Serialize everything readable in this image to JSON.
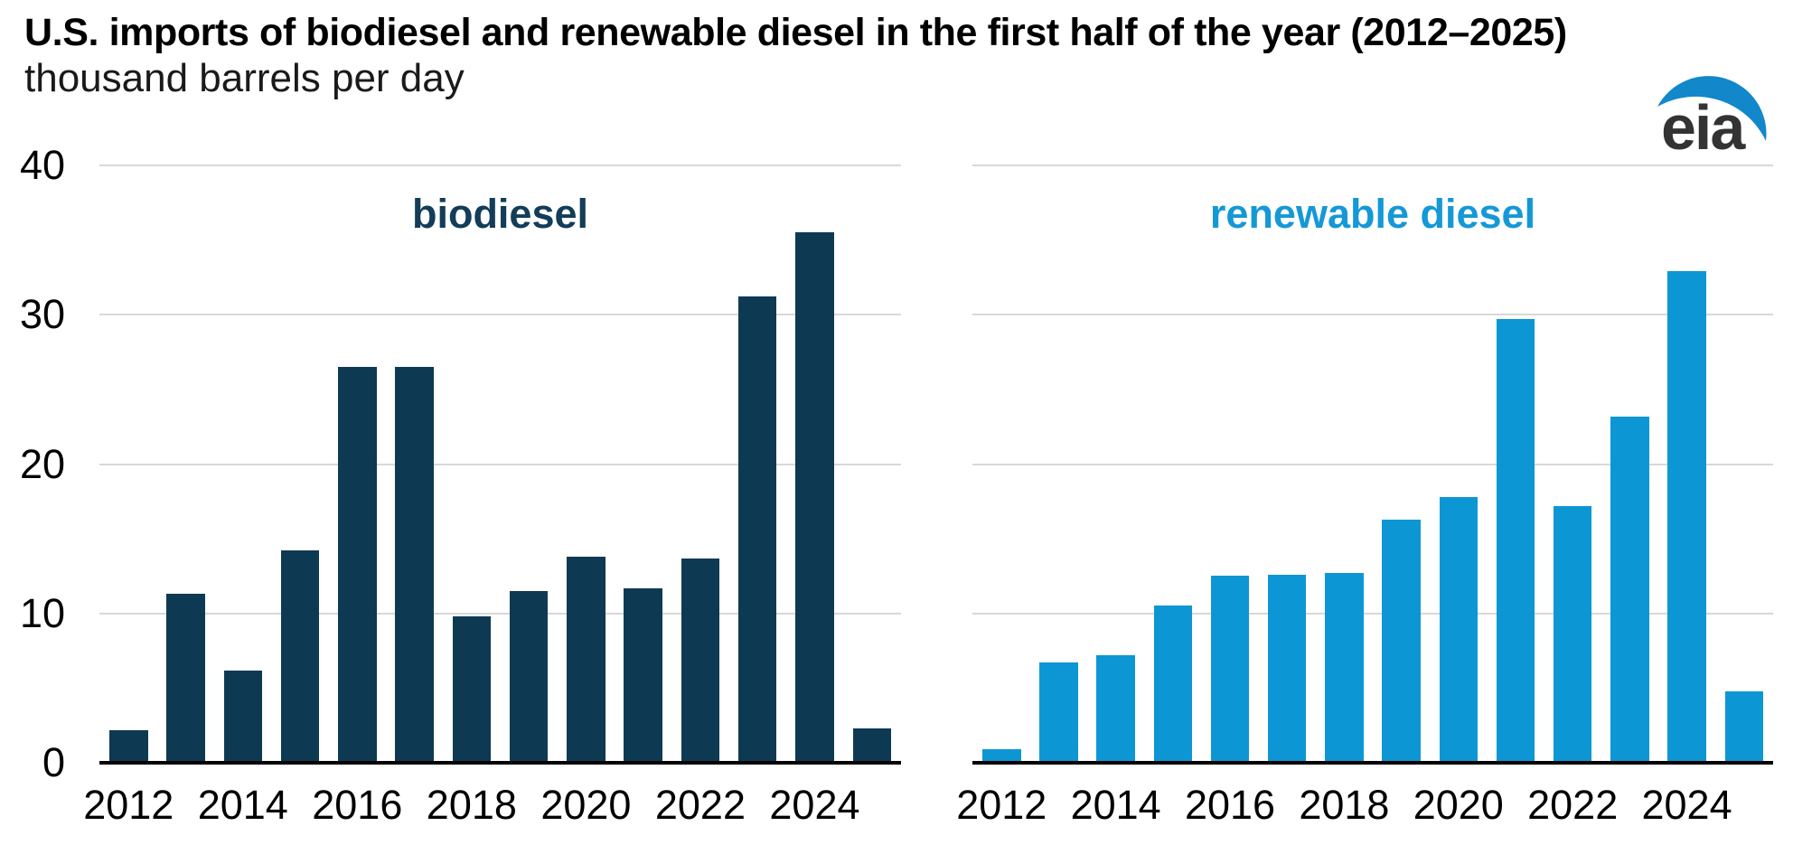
{
  "header": {
    "title": "U.S. imports of biodiesel and renewable diesel in the first half of the year (2012–2025)",
    "subtitle": "thousand barrels per day",
    "logo_text": "eia"
  },
  "colors": {
    "biodiesel_bar": "#0d3a52",
    "renewable_bar": "#0d96d4",
    "biodiesel_label": "#133d58",
    "renewable_label": "#1598d6",
    "gridline": "#d8d8d8",
    "axis_line": "#000000",
    "tick_text": "#000000",
    "logo_text": "#333333",
    "logo_swoosh": "#1287c9"
  },
  "axis": {
    "y_min": 0,
    "y_max": 40,
    "y_ticks": [
      40,
      30,
      20,
      10,
      0
    ],
    "x_tick_labels": [
      "2012",
      "2014",
      "2016",
      "2018",
      "2020",
      "2022",
      "2024"
    ]
  },
  "chart_data": [
    {
      "id": "biodiesel",
      "type": "bar",
      "title": "biodiesel",
      "ylabel": "thousand barrels per day",
      "x": [
        2012,
        2013,
        2014,
        2015,
        2016,
        2017,
        2018,
        2019,
        2020,
        2021,
        2022,
        2023,
        2024,
        2025
      ],
      "values": [
        2.2,
        11.3,
        6.2,
        14.2,
        26.5,
        26.5,
        9.8,
        11.5,
        13.8,
        11.7,
        13.7,
        31.2,
        35.5,
        2.3
      ],
      "ylim": [
        0,
        40
      ],
      "grid": true,
      "legend": "none",
      "color": "#0d3a52",
      "label_color": "#133d58"
    },
    {
      "id": "renewable-diesel",
      "type": "bar",
      "title": "renewable diesel",
      "ylabel": "thousand barrels per day",
      "x": [
        2012,
        2013,
        2014,
        2015,
        2016,
        2017,
        2018,
        2019,
        2020,
        2021,
        2022,
        2023,
        2024,
        2025
      ],
      "values": [
        0.9,
        6.7,
        7.2,
        10.5,
        12.5,
        12.6,
        12.7,
        16.3,
        17.8,
        29.7,
        17.2,
        23.2,
        32.9,
        4.8
      ],
      "ylim": [
        0,
        40
      ],
      "grid": true,
      "legend": "none",
      "color": "#0d96d4",
      "label_color": "#1598d6"
    }
  ]
}
